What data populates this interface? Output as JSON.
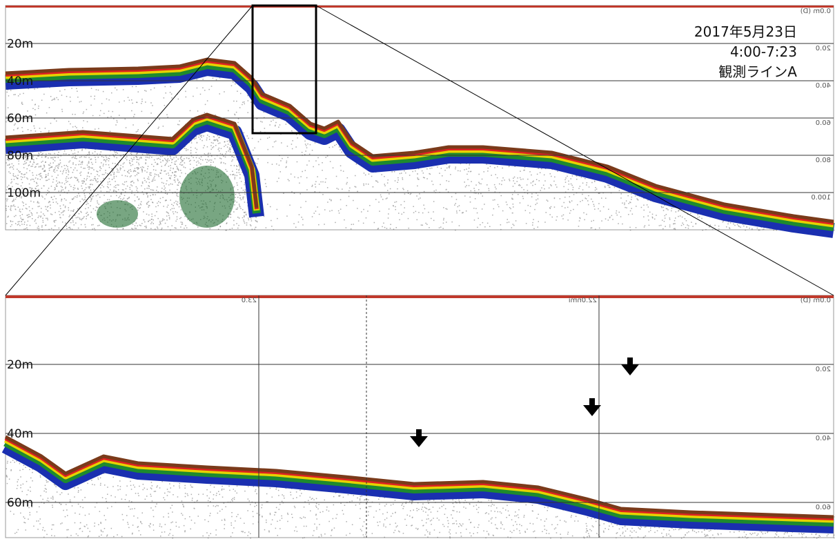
{
  "top_panel": {
    "depth_labels": [
      "20m",
      "40m",
      "60m",
      "80m",
      "100m"
    ],
    "range_labels": [
      "0.0m (D)",
      "20.0",
      "40.0",
      "60.0",
      "80.0",
      "100.0"
    ],
    "annotation": [
      "2017年5月23日",
      "4:00-7:23",
      "観測ラインA"
    ]
  },
  "bottom_panel": {
    "depth_labels": [
      "20m",
      "40m",
      "60m"
    ],
    "range_labels": [
      "0.0m (D)",
      "20.0",
      "40.0",
      "60.0"
    ],
    "distance_labels": [
      "23.0",
      "22.0nmi"
    ]
  }
}
